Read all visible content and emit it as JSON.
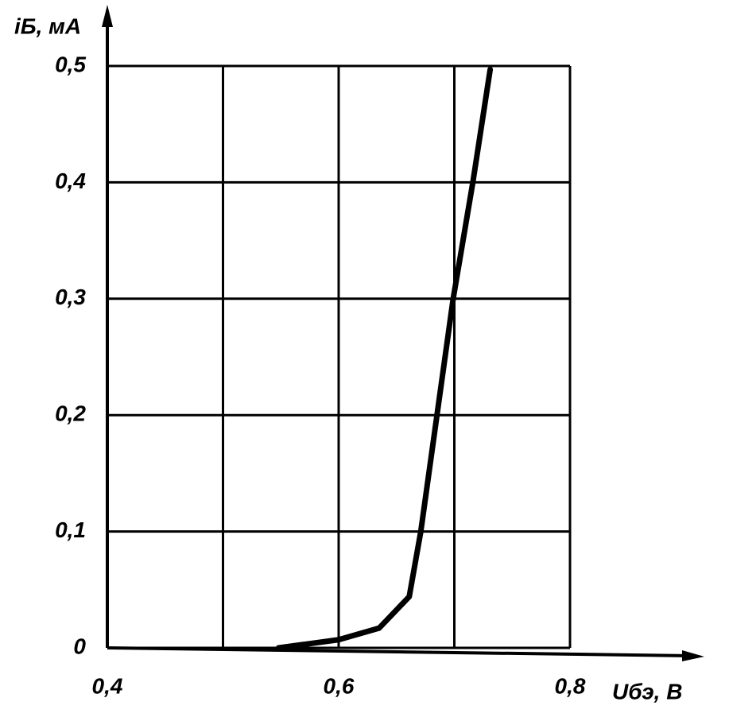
{
  "chart_data": {
    "type": "line",
    "ylabel": "iБ, мА",
    "xlabel": "Uбэ, В",
    "x": [
      0.548,
      0.6,
      0.635,
      0.661,
      0.666,
      0.671,
      0.699,
      0.716,
      0.731
    ],
    "series": [
      {
        "color": "#000000",
        "values": [
          0,
          0.007,
          0.017,
          0.044,
          0.072,
          0.1,
          0.3,
          0.4,
          0.497
        ]
      }
    ],
    "xlim": [
      0.4,
      0.8
    ],
    "ylim": [
      0,
      0.5
    ],
    "xticks": [
      {
        "value": 0.4,
        "label": "0,4"
      },
      {
        "value": 0.6,
        "label": "0,6"
      },
      {
        "value": 0.8,
        "label": "0,8"
      }
    ],
    "xgrid": [
      0.4,
      0.5,
      0.6,
      0.7,
      0.8
    ],
    "yticks": [
      0,
      {
        "value": 0.1,
        "label": "0,1"
      },
      {
        "value": 0.2,
        "label": "0,2"
      },
      {
        "value": 0.3,
        "label": "0,3"
      },
      {
        "value": 0.4,
        "label": "0,4"
      },
      {
        "value": 0.5,
        "label": "0,5"
      }
    ],
    "grid": true
  }
}
